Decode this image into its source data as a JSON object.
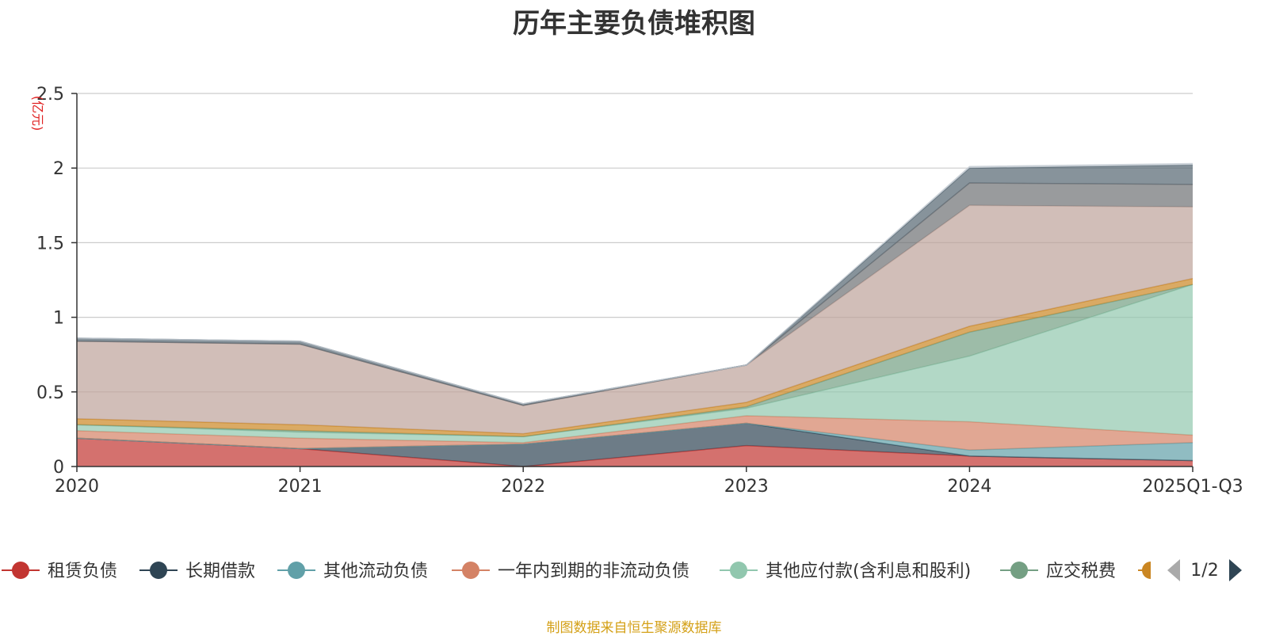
{
  "chart_data": {
    "type": "area",
    "stacked": true,
    "title": "历年主要负债堆积图",
    "yunit": "(亿元)",
    "ylim": [
      0,
      2.5
    ],
    "yticks": [
      "0",
      "0.5",
      "1",
      "1.5",
      "2",
      "2.5"
    ],
    "ytick_values": [
      0,
      0.5,
      1,
      1.5,
      2,
      2.5
    ],
    "categories": [
      "2020",
      "2021",
      "2022",
      "2023",
      "2024",
      "2025Q1-Q3"
    ],
    "grid": true,
    "legend_position": "bottom",
    "series": [
      {
        "name": "租赁负债",
        "color": "#c23531",
        "values": [
          0.19,
          0.12,
          0.0,
          0.14,
          0.07,
          0.04
        ]
      },
      {
        "name": "长期借款",
        "color": "#2f4554",
        "values": [
          0.0,
          0.0,
          0.15,
          0.15,
          0.0,
          0.0
        ]
      },
      {
        "name": "其他流动负债",
        "color": "#61a0a8",
        "values": [
          0.0,
          0.0,
          0.0,
          0.0,
          0.04,
          0.12
        ]
      },
      {
        "name": "一年内到期的非流动负债",
        "color": "#d48265",
        "values": [
          0.05,
          0.07,
          0.01,
          0.05,
          0.19,
          0.05
        ]
      },
      {
        "name": "其他应付款(含利息和股利)",
        "color": "#91c7ae",
        "values": [
          0.04,
          0.04,
          0.04,
          0.05,
          0.44,
          1.01
        ]
      },
      {
        "name": "应交税费",
        "color": "#749f83",
        "values": [
          0.0,
          0.01,
          0.0,
          0.01,
          0.16,
          0.0
        ]
      },
      {
        "name": "",
        "color": "#ca8622",
        "values": [
          0.04,
          0.04,
          0.02,
          0.03,
          0.04,
          0.04
        ]
      },
      {
        "name": "",
        "color": "#bda29a",
        "values": [
          0.52,
          0.54,
          0.19,
          0.25,
          0.81,
          0.48
        ]
      },
      {
        "name": "",
        "color": "#6e7074",
        "values": [
          0.0,
          0.0,
          0.0,
          0.0,
          0.15,
          0.15
        ]
      },
      {
        "name": "",
        "color": "#546570",
        "values": [
          0.02,
          0.02,
          0.01,
          0.0,
          0.1,
          0.13
        ]
      },
      {
        "name": "",
        "color": "#c4ccd3",
        "values": [
          0.0,
          0.0,
          0.0,
          0.0,
          0.01,
          0.01
        ]
      }
    ]
  },
  "legend": {
    "page_indicator": "1/2",
    "visible_items": [
      "租赁负债",
      "长期借款",
      "其他流动负债",
      "一年内到期的非流动负债",
      "其他应付款(含利息和股利)",
      "应交税费"
    ]
  },
  "source_note": "制图数据来自恒生聚源数据库"
}
